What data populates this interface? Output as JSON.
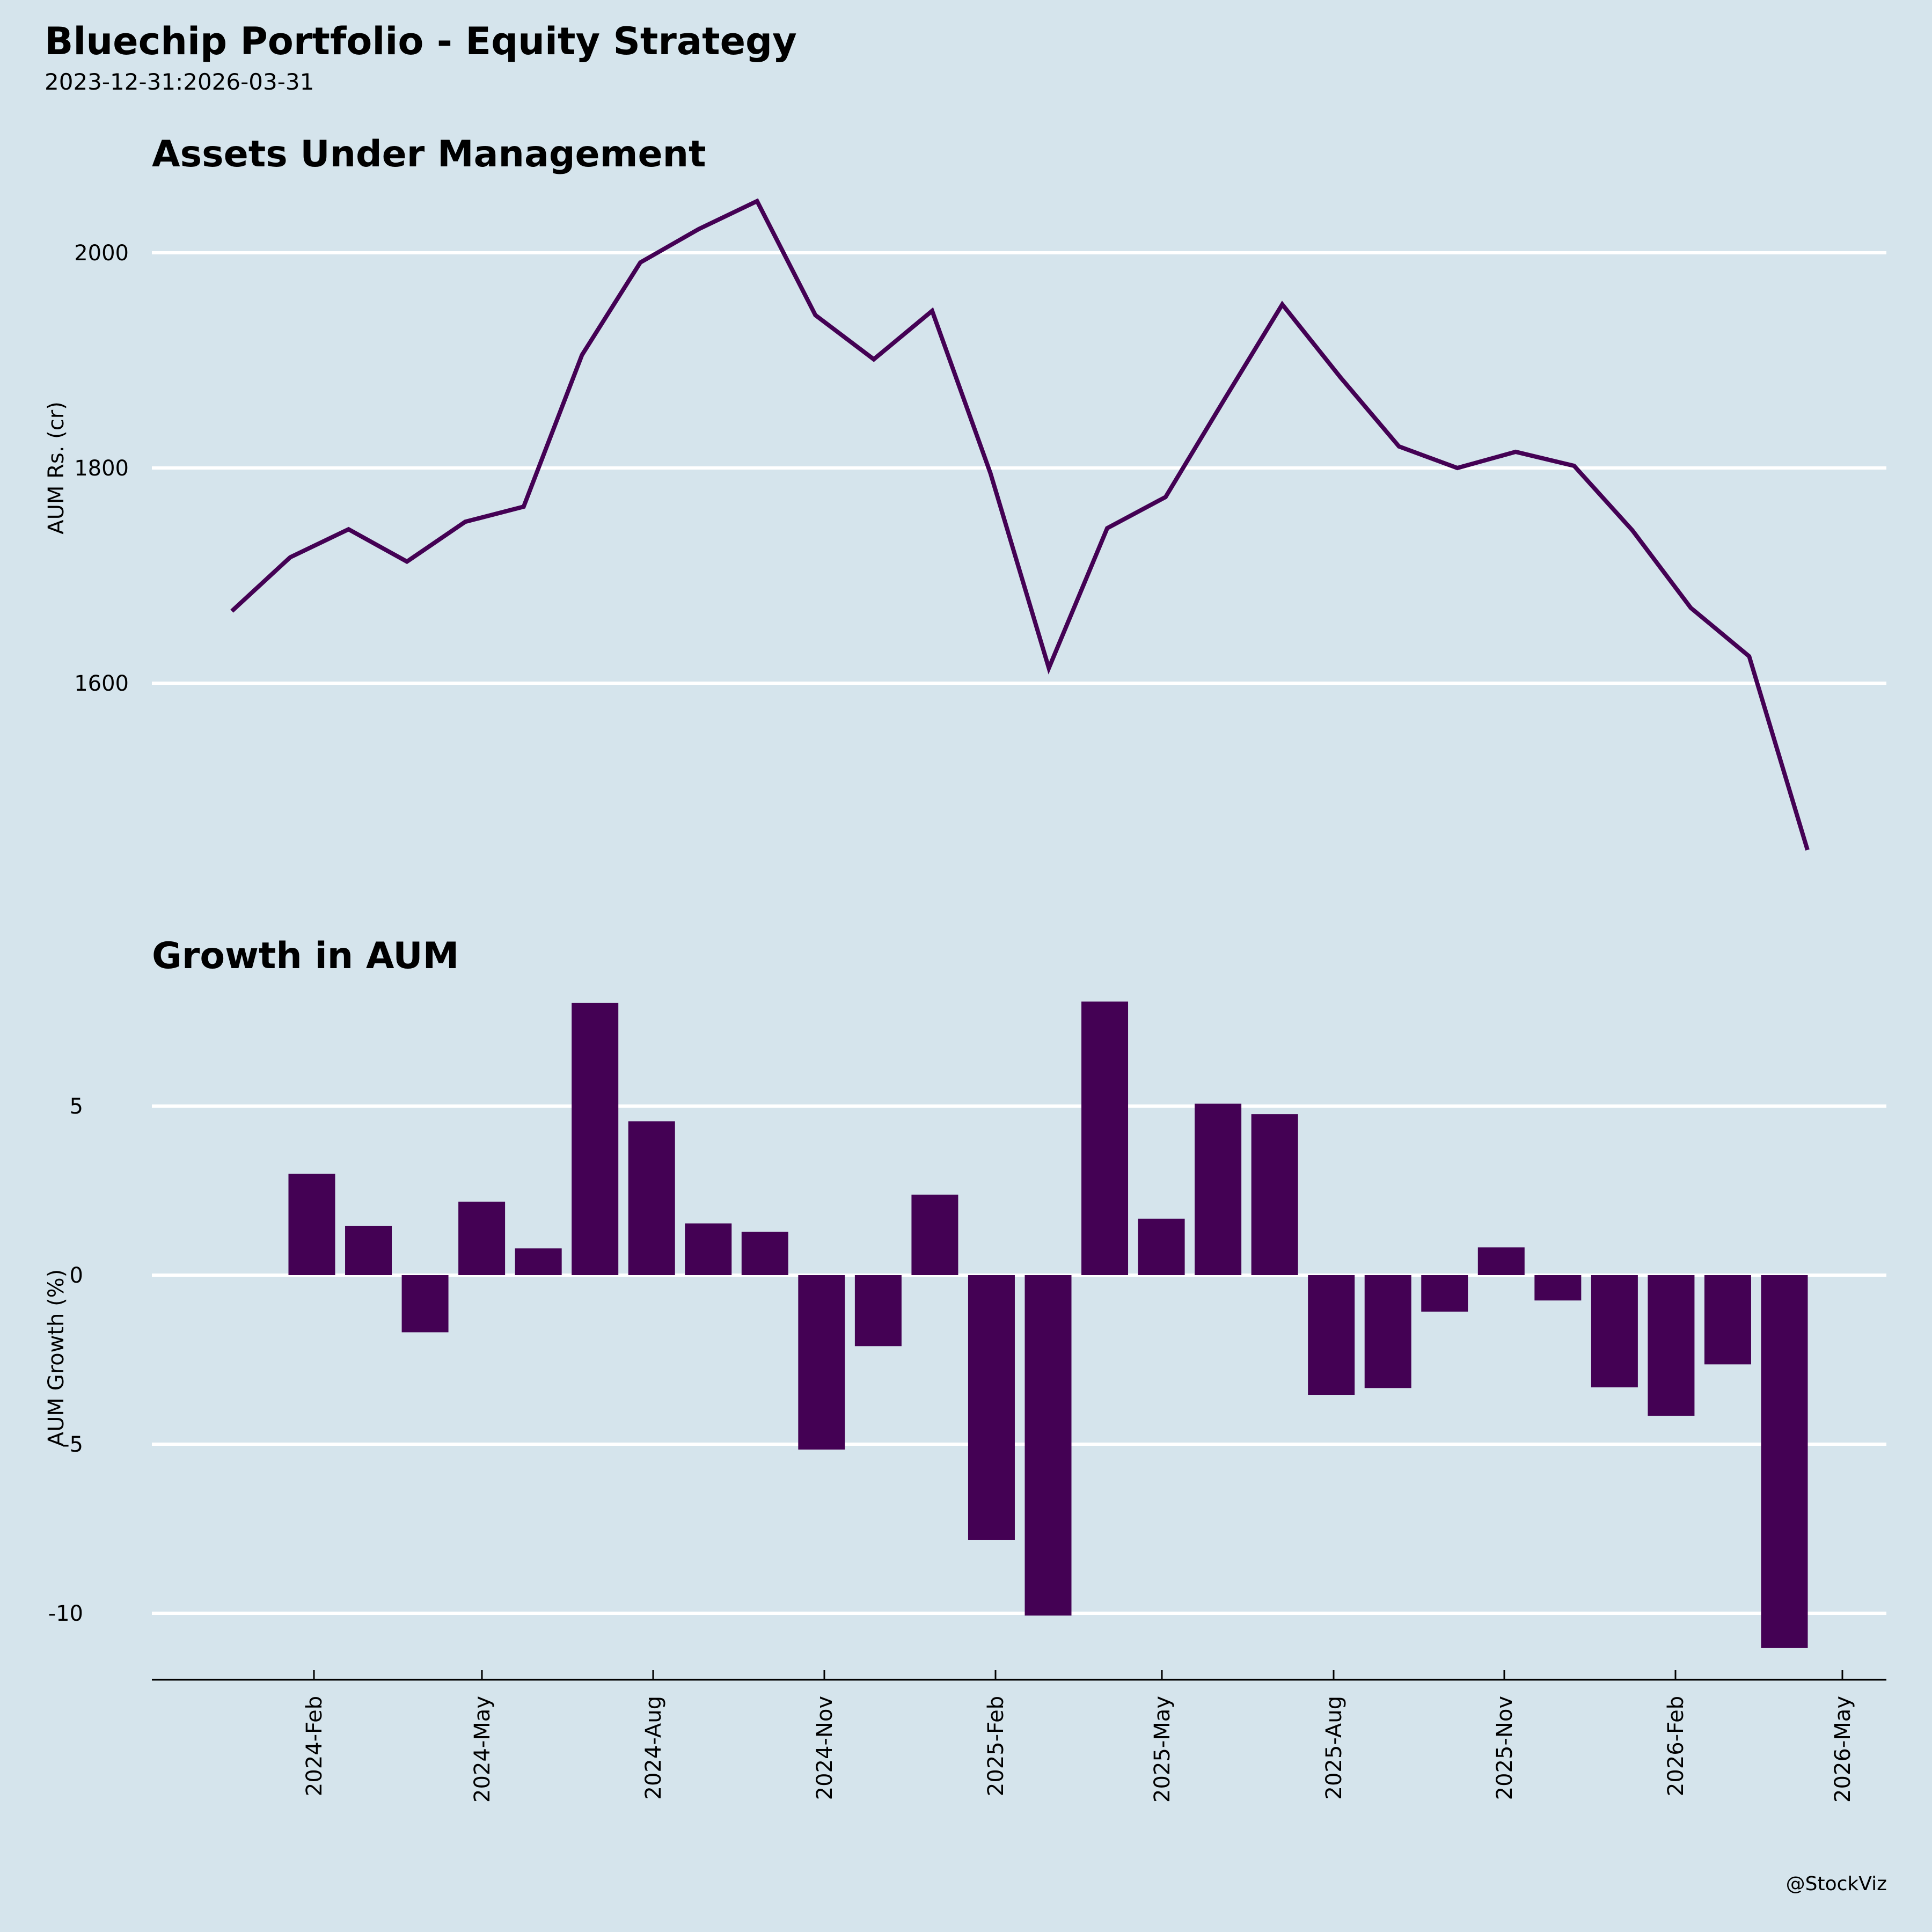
{
  "header": {
    "title": "Bluechip Portfolio - Equity Strategy",
    "subtitle": "2023-12-31:2026-03-31",
    "credit": "@StockViz"
  },
  "colors": {
    "background": "#d5e4ec",
    "series": "#440154",
    "grid": "#ffffff",
    "axis": "#000000"
  },
  "chart_data": [
    {
      "type": "line",
      "title": "Assets Under Management",
      "xlabel": "",
      "ylabel": "AUM Rs. (cr)",
      "ylim": [
        1430,
        2060
      ],
      "yticks": [
        1600,
        1800,
        2000
      ],
      "grid": true,
      "x": [
        "2023-12",
        "2024-01",
        "2024-02",
        "2024-03",
        "2024-04",
        "2024-05",
        "2024-06",
        "2024-07",
        "2024-08",
        "2024-09",
        "2024-10",
        "2024-11",
        "2024-12",
        "2025-01",
        "2025-02",
        "2025-03",
        "2025-04",
        "2025-05",
        "2025-06",
        "2025-07",
        "2025-08",
        "2025-09",
        "2025-10",
        "2025-11",
        "2025-12",
        "2026-01",
        "2026-02",
        "2026-03"
      ],
      "values": [
        1667,
        1717,
        1743,
        1713,
        1750,
        1764,
        1905,
        1991,
        2022,
        2048,
        1942,
        1901,
        1946,
        1795,
        1614,
        1744,
        1773,
        1863,
        1952,
        1884,
        1820,
        1800,
        1815,
        1802,
        1742,
        1670,
        1625,
        1445
      ]
    },
    {
      "type": "bar",
      "title": "Growth in AUM",
      "xlabel": "",
      "ylabel": "AUM Growth (%)",
      "ylim": [
        -11.5,
        8.8
      ],
      "yticks": [
        -10,
        -5,
        0,
        5
      ],
      "grid": true,
      "x": [
        "2024-01",
        "2024-02",
        "2024-03",
        "2024-04",
        "2024-05",
        "2024-06",
        "2024-07",
        "2024-08",
        "2024-09",
        "2024-10",
        "2024-11",
        "2024-12",
        "2025-01",
        "2025-02",
        "2025-03",
        "2025-04",
        "2025-05",
        "2025-06",
        "2025-07",
        "2025-08",
        "2025-09",
        "2025-10",
        "2025-11",
        "2025-12",
        "2026-01",
        "2026-02",
        "2026-03"
      ],
      "values": [
        3.0,
        1.46,
        -1.69,
        2.17,
        0.79,
        8.05,
        4.55,
        1.53,
        1.28,
        -5.16,
        -2.1,
        2.38,
        -7.84,
        -10.07,
        8.09,
        1.67,
        5.07,
        4.76,
        -3.54,
        -3.34,
        -1.08,
        0.82,
        -0.75,
        -3.32,
        -4.16,
        -2.64,
        -11.03
      ]
    }
  ],
  "x_axis": {
    "tick_labels": [
      "2024-Feb",
      "2024-May",
      "2024-Aug",
      "2024-Nov",
      "2025-Feb",
      "2025-May",
      "2025-Aug",
      "2025-Nov",
      "2026-Feb",
      "2026-May"
    ]
  }
}
